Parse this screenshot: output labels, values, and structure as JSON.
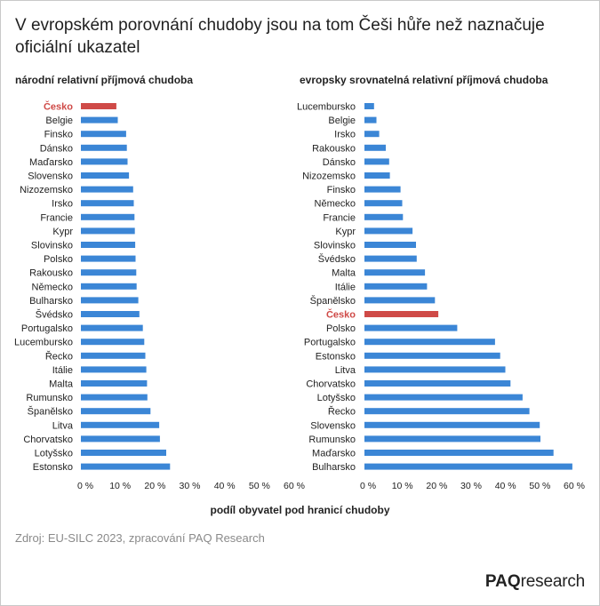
{
  "title": "V evropském porovnání chudoby jsou na tom Češi hůře než naznačuje oficiální ukazatel",
  "source": "Zdroj: EU-SILC 2023, zpracování PAQ Research",
  "logo": {
    "brand": "PAQ",
    "suffix": "research"
  },
  "colors": {
    "bar": "#3b86d6",
    "highlight": "#cf4a47",
    "text": "#222222"
  },
  "chart_data": [
    {
      "type": "bar",
      "orientation": "horizontal",
      "title": "národní relativní příjmová chudoba",
      "xlabel": "podíl obyvatel pod hranicí chudoby",
      "ylabel": "",
      "xlim": [
        0,
        60
      ],
      "ticks": [
        "0 %",
        "10 %",
        "20 %",
        "30 %",
        "40 %",
        "50 %",
        "60 %"
      ],
      "highlight": "Česko",
      "categories": [
        "Česko",
        "Belgie",
        "Finsko",
        "Dánsko",
        "Maďarsko",
        "Slovensko",
        "Nizozemsko",
        "Irsko",
        "Francie",
        "Kypr",
        "Slovinsko",
        "Polsko",
        "Rakousko",
        "Německo",
        "Bulharsko",
        "Švédsko",
        "Portugalsko",
        "Lucembursko",
        "Řecko",
        "Itálie",
        "Malta",
        "Rumunsko",
        "Španělsko",
        "Litva",
        "Chorvatsko",
        "Lotyšsko",
        "Estonsko"
      ],
      "values": [
        10.2,
        10.6,
        13.0,
        13.2,
        13.4,
        13.8,
        15.0,
        15.2,
        15.4,
        15.5,
        15.6,
        15.7,
        15.9,
        16.0,
        16.5,
        16.8,
        17.8,
        18.2,
        18.5,
        18.8,
        19.0,
        19.1,
        20.0,
        22.5,
        22.7,
        24.5,
        25.6
      ]
    },
    {
      "type": "bar",
      "orientation": "horizontal",
      "title": "evropsky srovnatelná relativní příjmová chudoba",
      "xlabel": "podíl obyvatel pod hranicí chudoby",
      "ylabel": "",
      "xlim": [
        0,
        60
      ],
      "ticks": [
        "0 %",
        "10 %",
        "20 %",
        "30 %",
        "40 %",
        "50 %",
        "60 %"
      ],
      "highlight": "Česko",
      "categories": [
        "Lucembursko",
        "Belgie",
        "Irsko",
        "Rakousko",
        "Dánsko",
        "Nizozemsko",
        "Finsko",
        "Německo",
        "Francie",
        "Kypr",
        "Slovinsko",
        "Švédsko",
        "Malta",
        "Itálie",
        "Španělsko",
        "Česko",
        "Polsko",
        "Portugalsko",
        "Estonsko",
        "Litva",
        "Chorvatsko",
        "Lotyšsko",
        "Řecko",
        "Slovensko",
        "Rumunsko",
        "Maďarsko",
        "Bulharsko"
      ],
      "values": [
        2.8,
        3.5,
        4.3,
        6.2,
        7.2,
        7.4,
        10.5,
        11.0,
        11.2,
        14.0,
        15.0,
        15.2,
        17.6,
        18.2,
        20.5,
        21.5,
        27.0,
        38.0,
        39.5,
        41.0,
        42.5,
        46.0,
        48.0,
        51.0,
        51.2,
        55.0,
        60.5
      ]
    }
  ]
}
